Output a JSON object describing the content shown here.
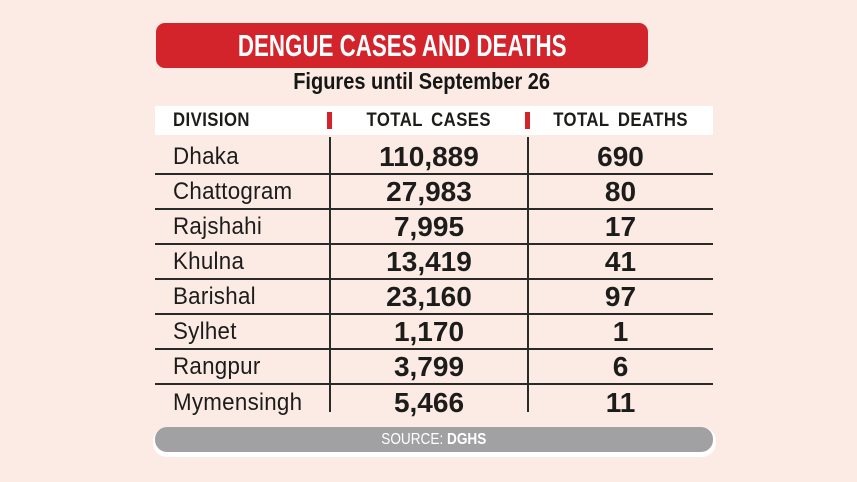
{
  "header": {
    "title": "DENGUE CASES AND DEATHS",
    "subtitle": "Figures until September 26"
  },
  "footer": {
    "source_label": "SOURCE:",
    "source_value": "DGHS"
  },
  "colors": {
    "background": "#fceae4",
    "accent_red": "#d3242b",
    "source_bar_gray": "#a1a1a3",
    "panel_white": "#ffffff",
    "text_black": "#1c1c1a"
  },
  "chart_data": {
    "type": "table",
    "title": "DENGUE CASES AND DEATHS",
    "subtitle": "Figures until September 26",
    "columns": [
      "DIVISION",
      "TOTAL CASES",
      "TOTAL DEATHS"
    ],
    "rows": [
      {
        "division": "Dhaka",
        "total_cases": "110,889",
        "total_deaths": "690"
      },
      {
        "division": "Chattogram",
        "total_cases": "27,983",
        "total_deaths": "80"
      },
      {
        "division": "Rajshahi",
        "total_cases": "7,995",
        "total_deaths": "17"
      },
      {
        "division": "Khulna",
        "total_cases": "13,419",
        "total_deaths": "41"
      },
      {
        "division": "Barishal",
        "total_cases": "23,160",
        "total_deaths": "97"
      },
      {
        "division": "Sylhet",
        "total_cases": "1,170",
        "total_deaths": "1"
      },
      {
        "division": "Rangpur",
        "total_cases": "3,799",
        "total_deaths": "6"
      },
      {
        "division": "Mymensingh",
        "total_cases": "5,466",
        "total_deaths": "11"
      }
    ],
    "source": "DGHS",
    "layout": {
      "grid": "row-separators and two column separators",
      "legend": "none"
    }
  }
}
